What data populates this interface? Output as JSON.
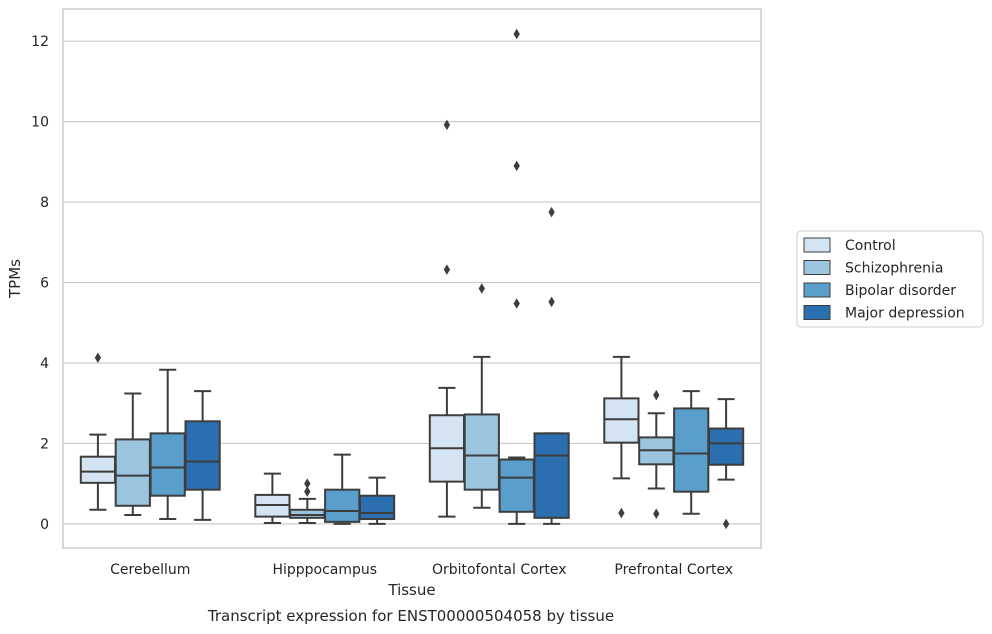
{
  "caption": "Transcript expression for ENST00000504058 by tissue",
  "chart_data": {
    "type": "box",
    "xlabel": "Tissue",
    "ylabel": "TPMs",
    "ylim": [
      -0.6,
      12.8
    ],
    "yticks": [
      0,
      2,
      4,
      6,
      8,
      10,
      12
    ],
    "grid": "horizontal",
    "legend_placement": "right",
    "categories": [
      "Cerebellum",
      "Hipppocampus",
      "Orbitofontal Cortex",
      "Prefrontal Cortex"
    ],
    "series": [
      {
        "name": "Control",
        "color": "#d4e4f2",
        "boxes": [
          {
            "whisker_low": 0.35,
            "q1": 1.02,
            "median": 1.3,
            "q3": 1.67,
            "whisker_high": 2.22,
            "outliers": [
              4.13
            ]
          },
          {
            "whisker_low": 0.02,
            "q1": 0.18,
            "median": 0.47,
            "q3": 0.72,
            "whisker_high": 1.25,
            "outliers": []
          },
          {
            "whisker_low": 0.18,
            "q1": 1.05,
            "median": 1.88,
            "q3": 2.7,
            "whisker_high": 3.38,
            "outliers": [
              6.32,
              9.92
            ]
          },
          {
            "whisker_low": 1.13,
            "q1": 2.02,
            "median": 2.6,
            "q3": 3.12,
            "whisker_high": 4.15,
            "outliers": [
              0.27
            ]
          }
        ]
      },
      {
        "name": "Schizophrenia",
        "color": "#9bc4de",
        "boxes": [
          {
            "whisker_low": 0.22,
            "q1": 0.45,
            "median": 1.2,
            "q3": 2.1,
            "whisker_high": 3.24,
            "outliers": []
          },
          {
            "whisker_low": 0.02,
            "q1": 0.15,
            "median": 0.22,
            "q3": 0.35,
            "whisker_high": 0.62,
            "outliers": [
              0.8,
              1.0
            ]
          },
          {
            "whisker_low": 0.4,
            "q1": 0.85,
            "median": 1.7,
            "q3": 2.72,
            "whisker_high": 4.15,
            "outliers": [
              5.85
            ]
          },
          {
            "whisker_low": 0.88,
            "q1": 1.48,
            "median": 1.83,
            "q3": 2.15,
            "whisker_high": 2.75,
            "outliers": [
              0.25,
              3.2
            ]
          }
        ]
      },
      {
        "name": "Bipolar disorder",
        "color": "#5a9ecb",
        "boxes": [
          {
            "whisker_low": 0.12,
            "q1": 0.7,
            "median": 1.4,
            "q3": 2.25,
            "whisker_high": 3.83,
            "outliers": []
          },
          {
            "whisker_low": 0.0,
            "q1": 0.05,
            "median": 0.32,
            "q3": 0.85,
            "whisker_high": 1.72,
            "outliers": []
          },
          {
            "whisker_low": 0.0,
            "q1": 0.3,
            "median": 1.15,
            "q3": 1.6,
            "whisker_high": 1.65,
            "outliers": [
              5.48,
              8.9,
              12.18
            ]
          },
          {
            "whisker_low": 0.25,
            "q1": 0.8,
            "median": 1.75,
            "q3": 2.87,
            "whisker_high": 3.3,
            "outliers": []
          }
        ]
      },
      {
        "name": "Major depression",
        "color": "#2c6fb0",
        "boxes": [
          {
            "whisker_low": 0.1,
            "q1": 0.85,
            "median": 1.55,
            "q3": 2.55,
            "whisker_high": 3.3,
            "outliers": []
          },
          {
            "whisker_low": 0.0,
            "q1": 0.12,
            "median": 0.27,
            "q3": 0.7,
            "whisker_high": 1.15,
            "outliers": []
          },
          {
            "whisker_low": 0.0,
            "q1": 0.15,
            "median": 1.7,
            "q3": 2.25,
            "whisker_high": 2.25,
            "outliers": [
              5.52,
              7.75
            ]
          },
          {
            "whisker_low": 1.1,
            "q1": 1.47,
            "median": 2.0,
            "q3": 2.37,
            "whisker_high": 3.1,
            "outliers": [
              0.0
            ]
          }
        ]
      }
    ]
  }
}
